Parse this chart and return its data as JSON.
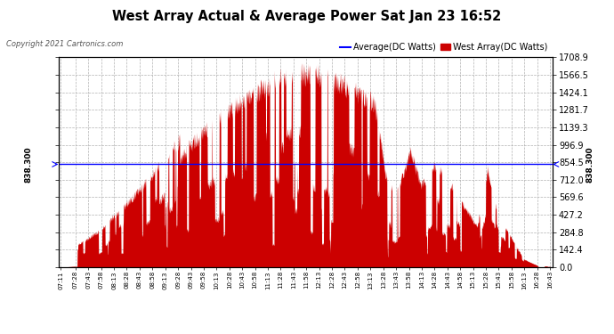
{
  "title": "West Array Actual & Average Power Sat Jan 23 16:52",
  "copyright": "Copyright 2021 Cartronics.com",
  "legend_avg": "Average(DC Watts)",
  "legend_west": "West Array(DC Watts)",
  "average_value": 838.3,
  "y_max": 1708.9,
  "y_min": 0.0,
  "y_ticks": [
    0.0,
    142.4,
    284.8,
    427.2,
    569.6,
    712.0,
    854.4,
    996.8,
    1139.2,
    1281.6,
    1424.0,
    1566.4,
    1708.8
  ],
  "y_tick_labels_right": [
    "0.0",
    "142.4",
    "284.8",
    "427.2",
    "569.6",
    "712.0",
    "854.5",
    "996.9",
    "1139.3",
    "1281.7",
    "1424.1",
    "1566.5",
    "1708.9"
  ],
  "avg_label": "838.300",
  "background_color": "#ffffff",
  "fill_color": "#cc0000",
  "avg_line_color": "#0000ff",
  "grid_color": "#aaaaaa",
  "x_tick_labels": [
    "07:11",
    "07:28",
    "07:43",
    "07:58",
    "08:13",
    "08:28",
    "08:43",
    "08:58",
    "09:13",
    "09:28",
    "09:43",
    "09:58",
    "10:13",
    "10:28",
    "10:43",
    "10:58",
    "11:13",
    "11:28",
    "11:43",
    "11:58",
    "12:13",
    "12:28",
    "12:43",
    "12:58",
    "13:13",
    "13:28",
    "13:43",
    "13:58",
    "14:13",
    "14:28",
    "14:43",
    "14:58",
    "15:13",
    "15:28",
    "15:43",
    "15:58",
    "16:13",
    "16:28",
    "16:43"
  ]
}
